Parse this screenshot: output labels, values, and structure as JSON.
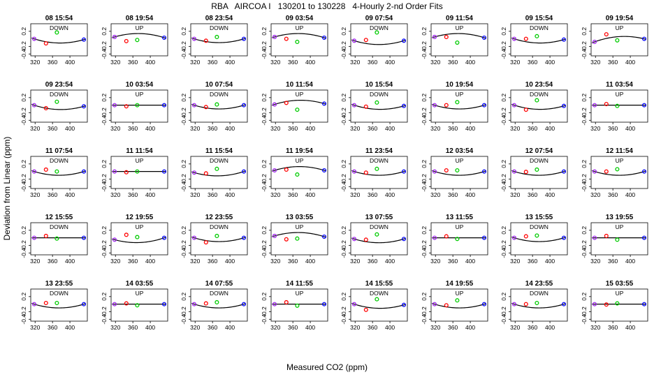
{
  "title": "RBA   AIRCOA I   130201 to 130228   4-Hourly 2-nd Order Fits",
  "xlabel": "Measured CO2 (ppm)",
  "ylabel": "Deviation from Linear (ppm)",
  "colors": {
    "low_std": "#a020f0",
    "mid_std_1": "#ff0000",
    "mid_std_2": "#00cc00",
    "high_std": "#0000ff",
    "fit_curve": "#000000"
  },
  "chart_data": {
    "type": "scatter",
    "layout": "grid 5 rows x 8 columns",
    "xlim": [
      310,
      440
    ],
    "ylim": [
      -0.45,
      0.4
    ],
    "x_ticks": [
      320,
      360,
      400
    ],
    "y_ticks": [
      -0.4,
      -0.2,
      0.2
    ],
    "std_x": [
      318,
      345,
      370,
      432
    ],
    "series_colors_by_point": [
      "low_std",
      "mid_std_1",
      "mid_std_2",
      "high_std"
    ],
    "panels": [
      {
        "label": "08 15:54",
        "dir": "DOWN",
        "y": [
          0.0,
          -0.12,
          0.17,
          -0.02
        ],
        "curvature": -1
      },
      {
        "label": "08 19:54",
        "dir": "UP",
        "y": [
          0.05,
          -0.06,
          -0.03,
          0.03
        ],
        "curvature": 1
      },
      {
        "label": "08 23:54",
        "dir": "DOWN",
        "y": [
          0.0,
          -0.05,
          0.05,
          0.0
        ],
        "curvature": -1
      },
      {
        "label": "09 03:54",
        "dir": "UP",
        "y": [
          0.05,
          0.0,
          -0.08,
          0.03
        ],
        "curvature": 1
      },
      {
        "label": "09 07:54",
        "dir": "DOWN",
        "y": [
          -0.05,
          -0.03,
          0.17,
          -0.05
        ],
        "curvature": -1
      },
      {
        "label": "09 11:54",
        "dir": "UP",
        "y": [
          0.05,
          0.05,
          -0.1,
          0.03
        ],
        "curvature": 1
      },
      {
        "label": "09 15:54",
        "dir": "DOWN",
        "y": [
          0.0,
          0.0,
          0.07,
          -0.02
        ],
        "curvature": -1
      },
      {
        "label": "09 19:54",
        "dir": "UP",
        "y": [
          -0.08,
          0.12,
          -0.04,
          0.0
        ],
        "curvature": 1
      },
      {
        "label": "09 23:54",
        "dir": "DOWN",
        "y": [
          0.0,
          -0.08,
          0.09,
          -0.03
        ],
        "curvature": -1
      },
      {
        "label": "10 03:54",
        "dir": "UP",
        "y": [
          0.0,
          -0.03,
          0.0,
          0.0
        ],
        "curvature": 0
      },
      {
        "label": "10 07:54",
        "dir": "DOWN",
        "y": [
          0.0,
          -0.05,
          0.02,
          0.0
        ],
        "curvature": -1
      },
      {
        "label": "10 11:54",
        "dir": "UP",
        "y": [
          0.02,
          0.06,
          -0.12,
          0.04
        ],
        "curvature": 1
      },
      {
        "label": "10 15:54",
        "dir": "DOWN",
        "y": [
          0.0,
          -0.04,
          0.07,
          -0.02
        ],
        "curvature": -1
      },
      {
        "label": "10 19:54",
        "dir": "UP",
        "y": [
          0.0,
          0.0,
          0.08,
          0.0
        ],
        "curvature": -1
      },
      {
        "label": "10 23:54",
        "dir": "DOWN",
        "y": [
          0.0,
          -0.12,
          0.13,
          -0.02
        ],
        "curvature": -1
      },
      {
        "label": "11 03:54",
        "dir": "UP",
        "y": [
          0.0,
          0.03,
          -0.02,
          0.0
        ],
        "curvature": 0
      },
      {
        "label": "11 07:54",
        "dir": "DOWN",
        "y": [
          0.0,
          0.05,
          0.0,
          0.0
        ],
        "curvature": -1
      },
      {
        "label": "11 11:54",
        "dir": "UP",
        "y": [
          0.0,
          -0.02,
          0.0,
          0.0
        ],
        "curvature": 0
      },
      {
        "label": "11 15:54",
        "dir": "DOWN",
        "y": [
          -0.03,
          -0.05,
          0.07,
          0.0
        ],
        "curvature": -1
      },
      {
        "label": "11 19:54",
        "dir": "UP",
        "y": [
          0.03,
          0.05,
          -0.08,
          0.03
        ],
        "curvature": 1
      },
      {
        "label": "11 23:54",
        "dir": "DOWN",
        "y": [
          0.0,
          -0.03,
          0.07,
          0.0
        ],
        "curvature": -1
      },
      {
        "label": "12 03:54",
        "dir": "UP",
        "y": [
          0.0,
          0.03,
          0.03,
          0.0
        ],
        "curvature": -1
      },
      {
        "label": "12 07:54",
        "dir": "DOWN",
        "y": [
          0.0,
          -0.01,
          0.05,
          0.0
        ],
        "curvature": -1
      },
      {
        "label": "12 11:54",
        "dir": "UP",
        "y": [
          0.0,
          0.0,
          0.06,
          0.0
        ],
        "curvature": -1
      },
      {
        "label": "12 15:55",
        "dir": "DOWN",
        "y": [
          0.0,
          0.05,
          -0.02,
          0.0
        ],
        "curvature": 0
      },
      {
        "label": "12 19:55",
        "dir": "UP",
        "y": [
          -0.05,
          0.08,
          0.02,
          0.0
        ],
        "curvature": -1
      },
      {
        "label": "12 23:55",
        "dir": "DOWN",
        "y": [
          0.0,
          -0.12,
          0.05,
          0.0
        ],
        "curvature": -1
      },
      {
        "label": "13 03:55",
        "dir": "UP",
        "y": [
          0.05,
          -0.04,
          -0.02,
          0.03
        ],
        "curvature": 1
      },
      {
        "label": "13 07:55",
        "dir": "DOWN",
        "y": [
          -0.03,
          -0.05,
          0.09,
          -0.03
        ],
        "curvature": -1
      },
      {
        "label": "13 11:55",
        "dir": "UP",
        "y": [
          0.0,
          0.04,
          -0.03,
          0.0
        ],
        "curvature": 0
      },
      {
        "label": "13 15:55",
        "dir": "DOWN",
        "y": [
          0.0,
          0.04,
          0.06,
          0.0
        ],
        "curvature": -1
      },
      {
        "label": "13 19:55",
        "dir": "UP",
        "y": [
          0.0,
          0.05,
          -0.05,
          0.0
        ],
        "curvature": 0
      },
      {
        "label": "13 23:55",
        "dir": "DOWN",
        "y": [
          0.0,
          0.03,
          0.03,
          0.0
        ],
        "curvature": -1
      },
      {
        "label": "14 03:55",
        "dir": "UP",
        "y": [
          0.0,
          0.02,
          -0.03,
          0.0
        ],
        "curvature": 0
      },
      {
        "label": "14 07:55",
        "dir": "DOWN",
        "y": [
          0.0,
          0.02,
          0.05,
          0.0
        ],
        "curvature": -1
      },
      {
        "label": "14 11:55",
        "dir": "UP",
        "y": [
          0.0,
          0.05,
          -0.04,
          0.0
        ],
        "curvature": 0
      },
      {
        "label": "14 15:55",
        "dir": "DOWN",
        "y": [
          0.0,
          -0.15,
          0.13,
          -0.02
        ],
        "curvature": -1
      },
      {
        "label": "14 19:55",
        "dir": "UP",
        "y": [
          0.0,
          -0.03,
          0.1,
          0.0
        ],
        "curvature": -1
      },
      {
        "label": "14 23:55",
        "dir": "DOWN",
        "y": [
          0.0,
          0.0,
          0.03,
          0.0
        ],
        "curvature": -1
      },
      {
        "label": "15 03:55",
        "dir": "UP",
        "y": [
          0.0,
          -0.01,
          0.02,
          0.0
        ],
        "curvature": 0
      }
    ]
  }
}
